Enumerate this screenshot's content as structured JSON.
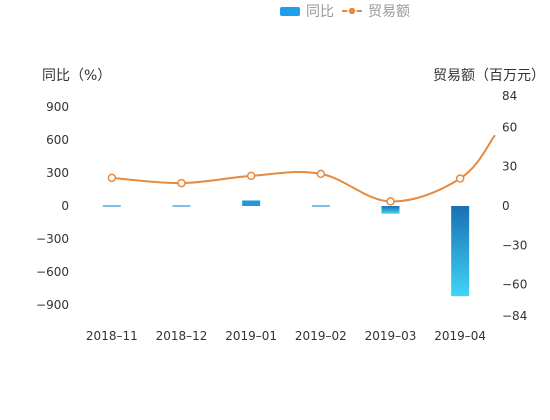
{
  "chart_data": {
    "type": "bar+line",
    "categories": [
      "2018–11",
      "2018–12",
      "2019–01",
      "2019–02",
      "2019–03",
      "2019–04"
    ],
    "series": [
      {
        "name": "同比",
        "type": "bar",
        "axis": "left",
        "values": [
          10,
          0,
          50,
          -10,
          -70,
          -820
        ]
      },
      {
        "name": "贸易额",
        "type": "line",
        "axis": "right",
        "values": [
          21.5,
          17.5,
          23,
          24.5,
          3.5,
          21
        ]
      }
    ],
    "line_end_value": 54,
    "left_axis": {
      "title": "同比（%）",
      "ticks": [
        -900,
        -600,
        -300,
        0,
        300,
        600,
        900
      ],
      "tick_labels": [
        "−900",
        "−600",
        "−300",
        "0",
        "300",
        "600",
        "900"
      ],
      "range": [
        -1000,
        1000
      ]
    },
    "right_axis": {
      "title": "贸易额（百万元）",
      "ticks": [
        84,
        60,
        30,
        0,
        -30,
        -60,
        -84
      ],
      "tick_labels": [
        "84",
        "60",
        "30",
        "0",
        "−30",
        "−60",
        "−84"
      ],
      "range": [
        -84,
        84
      ]
    },
    "legend": {
      "position": "top-center",
      "items": [
        "同比",
        "贸易额"
      ]
    },
    "grid": false,
    "colors": {
      "bar_top": "#1a6fb5",
      "bar_bottom": "#40d4f5",
      "bar_small": "#2196d9",
      "line": "#e58a3e",
      "marker_fill": "#ffffff",
      "legend_bar": "#1f9fe8"
    }
  }
}
